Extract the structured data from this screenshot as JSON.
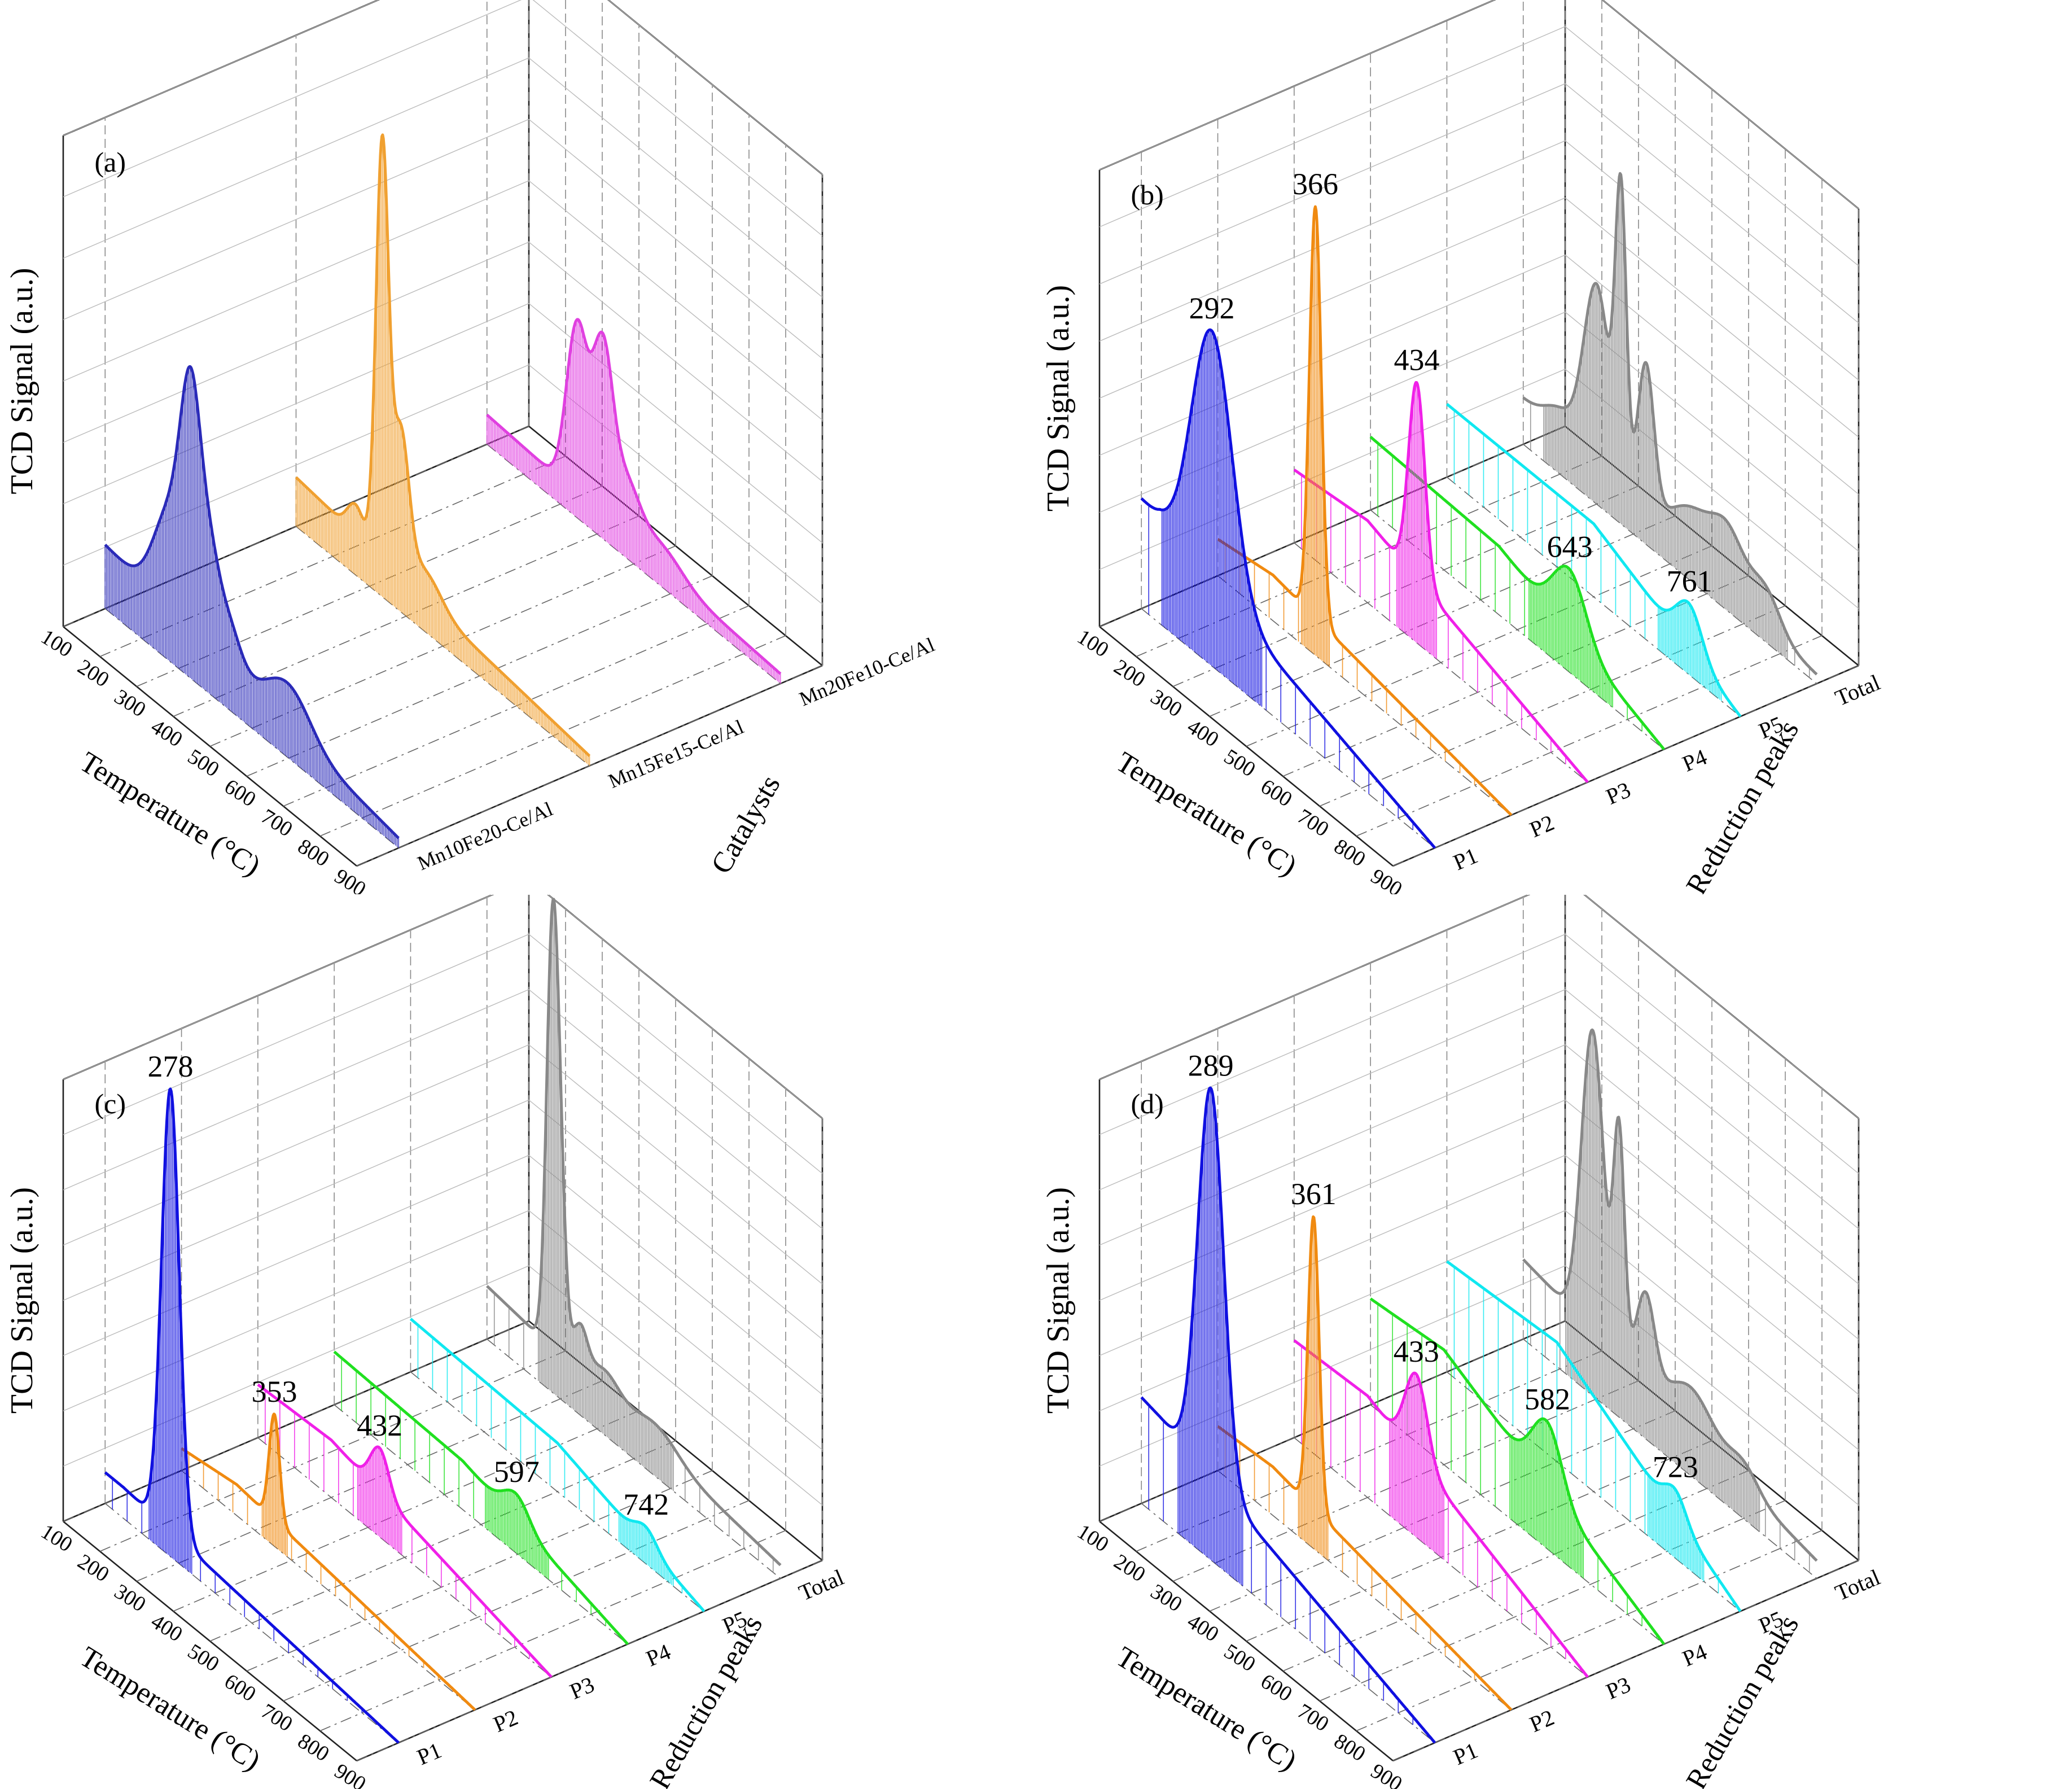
{
  "figure": {
    "panels": [
      {
        "id": "a",
        "label": "(a)",
        "ylabel": "TCD Signal (a.u.)",
        "xlabel": "Temperature (°C)",
        "zlabel": "Catalysts"
      },
      {
        "id": "b",
        "label": "(b)",
        "ylabel": "TCD Signal (a.u.)",
        "xlabel": "Temperature (°C)",
        "zlabel": "Reduction peaks"
      },
      {
        "id": "c",
        "label": "(c)",
        "ylabel": "TCD Signal (a.u.)",
        "xlabel": "Temperature (°C)",
        "zlabel": "Reduction peaks"
      },
      {
        "id": "d",
        "label": "(d)",
        "ylabel": "TCD Signal (a.u.)",
        "xlabel": "Temperature (°C)",
        "zlabel": "Reduction peaks"
      }
    ]
  },
  "colors": {
    "blue": "#1010e0",
    "orange": "#f08a10",
    "magenta": "#f020e8",
    "green": "#20e020",
    "cyan": "#10e8f0",
    "gray": "#888888",
    "navy": "#2a2ab8",
    "amber": "#f0a030",
    "pink": "#e040e0"
  },
  "chart_data": [
    {
      "panel": "a",
      "type": "area",
      "title": "",
      "xlabel": "Temperature (°C)",
      "ylabel": "TCD Signal (a.u.)",
      "zlabel": "Catalysts",
      "x_ticks": [
        100,
        200,
        300,
        400,
        500,
        600,
        700,
        800,
        900
      ],
      "xlim": [
        100,
        900
      ],
      "z_categories": [
        "Mn10Fe20-Ce/Al",
        "Mn15Fe15-Ce/Al",
        "Mn20Fe10-Ce/Al"
      ],
      "grid": true,
      "peak_labels": [],
      "series": [
        {
          "name": "Mn10Fe20-Ce/Al",
          "color": "#2a2ab8",
          "baseline": [
            [
              100,
              0.13
            ],
            [
              900,
              0.02
            ]
          ],
          "peaks": [
            [
              280,
              0.2,
              45
            ],
            [
              335,
              0.42,
              28
            ],
            [
              385,
              0.13,
              25
            ],
            [
              430,
              0.1,
              35
            ],
            [
              600,
              0.09,
              60
            ]
          ]
        },
        {
          "name": "Mn15Fe15-Ce/Al",
          "color": "#f0a030",
          "baseline": [
            [
              100,
              0.1
            ],
            [
              900,
              0.02
            ]
          ],
          "peaks": [
            [
              262,
              0.06,
              22
            ],
            [
              335,
              0.84,
              17
            ],
            [
              385,
              0.28,
              22
            ],
            [
              450,
              0.06,
              45
            ]
          ]
        },
        {
          "name": "Mn20Fe10-Ce/Al",
          "color": "#e040e0",
          "baseline": [
            [
              100,
              0.06
            ],
            [
              900,
              0.02
            ]
          ],
          "peaks": [
            [
              345,
              0.34,
              28
            ],
            [
              415,
              0.34,
              28
            ],
            [
              480,
              0.1,
              35
            ],
            [
              570,
              0.05,
              60
            ]
          ]
        }
      ]
    },
    {
      "panel": "b",
      "type": "area",
      "title": "",
      "xlabel": "Temperature (°C)",
      "ylabel": "TCD Signal (a.u.)",
      "zlabel": "Reduction peaks",
      "x_ticks": [
        100,
        200,
        300,
        400,
        500,
        600,
        700,
        800,
        900
      ],
      "xlim": [
        100,
        900
      ],
      "z_categories": [
        "P1",
        "P2",
        "P3",
        "P4",
        "P5",
        "Total"
      ],
      "grid": true,
      "peak_labels": [
        "292",
        "366",
        "434",
        "643",
        "761"
      ],
      "series": [
        {
          "name": "P1",
          "color": "#1010e0",
          "peak_label": "292",
          "baseline": [
            [
              100,
              0.24
            ],
            [
              150,
              0.23
            ],
            [
              200,
              0.2
            ],
            [
              900,
              0.0
            ]
          ],
          "peaks": [
            [
              292,
              0.56,
              55
            ]
          ]
        },
        {
          "name": "P2",
          "color": "#f08a10",
          "peak_label": "366",
          "baseline": [
            [
              100,
              0.08
            ],
            [
              250,
              0.1
            ],
            [
              900,
              0.0
            ]
          ],
          "peaks": [
            [
              366,
              0.9,
              16
            ]
          ]
        },
        {
          "name": "P3",
          "color": "#f020e8",
          "peak_label": "434",
          "baseline": [
            [
              100,
              0.16
            ],
            [
              300,
              0.18
            ],
            [
              900,
              0.0
            ]
          ],
          "peaks": [
            [
              434,
              0.43,
              22
            ]
          ]
        },
        {
          "name": "P4",
          "color": "#20e020",
          "peak_label": "643",
          "baseline": [
            [
              100,
              0.16
            ],
            [
              450,
              0.15
            ],
            [
              900,
              0.0
            ]
          ],
          "peaks": [
            [
              643,
              0.14,
              45
            ]
          ]
        },
        {
          "name": "P5",
          "color": "#10e8f0",
          "peak_label": "761",
          "baseline": [
            [
              100,
              0.16
            ],
            [
              500,
              0.16
            ],
            [
              900,
              0.0
            ]
          ],
          "peaks": [
            [
              761,
              0.1,
              35
            ]
          ]
        },
        {
          "name": "Total",
          "color": "#888888",
          "baseline": [
            [
              100,
              0.1
            ],
            [
              900,
              0.02
            ]
          ],
          "peaks": [
            [
              200,
              0.05,
              40
            ],
            [
              300,
              0.4,
              35
            ],
            [
              366,
              0.62,
              15
            ],
            [
              434,
              0.32,
              22
            ],
            [
              560,
              0.1,
              60
            ],
            [
              660,
              0.12,
              45
            ],
            [
              760,
              0.08,
              40
            ]
          ]
        }
      ]
    },
    {
      "panel": "c",
      "type": "area",
      "title": "",
      "xlabel": "Temperature (°C)",
      "ylabel": "TCD Signal (a.u.)",
      "zlabel": "Reduction peaks",
      "x_ticks": [
        100,
        200,
        300,
        400,
        500,
        600,
        700,
        800,
        900
      ],
      "xlim": [
        100,
        900
      ],
      "z_categories": [
        "P1",
        "P2",
        "P3",
        "P4",
        "P5",
        "Total"
      ],
      "grid": true,
      "peak_labels": [
        "278",
        "353",
        "432",
        "597",
        "742"
      ],
      "series": [
        {
          "name": "P1",
          "color": "#1010e0",
          "peak_label": "278",
          "baseline": [
            [
              100,
              0.07
            ],
            [
              150,
              0.07
            ],
            [
              900,
              0.0
            ]
          ],
          "peaks": [
            [
              278,
              1.0,
              24
            ]
          ]
        },
        {
          "name": "P2",
          "color": "#f08a10",
          "peak_label": "353",
          "baseline": [
            [
              100,
              0.05
            ],
            [
              250,
              0.07
            ],
            [
              900,
              0.0
            ]
          ],
          "peaks": [
            [
              353,
              0.24,
              14
            ]
          ]
        },
        {
          "name": "P3",
          "color": "#f020e8",
          "peak_label": "432",
          "baseline": [
            [
              100,
              0.12
            ],
            [
              300,
              0.13
            ],
            [
              900,
              0.0
            ]
          ],
          "peaks": [
            [
              432,
              0.1,
              25
            ]
          ]
        },
        {
          "name": "P4",
          "color": "#20e020",
          "peak_label": "597",
          "baseline": [
            [
              100,
              0.12
            ],
            [
              450,
              0.11
            ],
            [
              900,
              0.0
            ]
          ],
          "peaks": [
            [
              597,
              0.06,
              35
            ]
          ]
        },
        {
          "name": "P5",
          "color": "#10e8f0",
          "peak_label": "742",
          "baseline": [
            [
              100,
              0.12
            ],
            [
              500,
              0.11
            ],
            [
              900,
              0.0
            ]
          ],
          "peaks": [
            [
              742,
              0.04,
              30
            ]
          ]
        },
        {
          "name": "Total",
          "color": "#888888",
          "baseline": [
            [
              100,
              0.12
            ],
            [
              900,
              0.03
            ]
          ],
          "peaks": [
            [
              278,
              0.9,
              16
            ],
            [
              300,
              0.3,
              15
            ],
            [
              353,
              0.1,
              20
            ],
            [
              420,
              0.06,
              40
            ],
            [
              560,
              0.05,
              60
            ]
          ]
        }
      ]
    },
    {
      "panel": "d",
      "type": "area",
      "title": "",
      "xlabel": "Temperature (°C)",
      "ylabel": "TCD Signal (a.u.)",
      "zlabel": "Reduction peaks",
      "x_ticks": [
        100,
        200,
        300,
        400,
        500,
        600,
        700,
        800,
        900
      ],
      "xlim": [
        100,
        900
      ],
      "z_categories": [
        "P1",
        "P2",
        "P3",
        "P4",
        "P5",
        "Total"
      ],
      "grid": true,
      "peak_labels": [
        "289",
        "361",
        "433",
        "582",
        "723"
      ],
      "series": [
        {
          "name": "P1",
          "color": "#1010e0",
          "peak_label": "289",
          "baseline": [
            [
              100,
              0.24
            ],
            [
              150,
              0.23
            ],
            [
              900,
              0.0
            ]
          ],
          "peaks": [
            [
              289,
              0.88,
              35
            ]
          ]
        },
        {
          "name": "P2",
          "color": "#f08a10",
          "peak_label": "361",
          "baseline": [
            [
              100,
              0.1
            ],
            [
              250,
              0.11
            ],
            [
              900,
              0.0
            ]
          ],
          "peaks": [
            [
              361,
              0.66,
              15
            ]
          ]
        },
        {
          "name": "P3",
          "color": "#f020e8",
          "peak_label": "433",
          "baseline": [
            [
              100,
              0.22
            ],
            [
              300,
              0.23
            ],
            [
              900,
              0.0
            ]
          ],
          "peaks": [
            [
              433,
              0.19,
              30
            ]
          ]
        },
        {
          "name": "P4",
          "color": "#20e020",
          "peak_label": "582",
          "baseline": [
            [
              100,
              0.24
            ],
            [
              300,
              0.26
            ],
            [
              900,
              0.0
            ]
          ],
          "peaks": [
            [
              582,
              0.15,
              40
            ]
          ]
        },
        {
          "name": "P5",
          "color": "#10e8f0",
          "peak_label": "723",
          "baseline": [
            [
              100,
              0.25
            ],
            [
              400,
              0.27
            ],
            [
              900,
              0.0
            ]
          ],
          "peaks": [
            [
              723,
              0.06,
              30
            ]
          ]
        },
        {
          "name": "Total",
          "color": "#888888",
          "baseline": [
            [
              100,
              0.18
            ],
            [
              900,
              0.04
            ]
          ],
          "peaks": [
            [
              289,
              0.68,
              30
            ],
            [
              361,
              0.5,
              15
            ],
            [
              433,
              0.2,
              25
            ],
            [
              560,
              0.1,
              60
            ],
            [
              700,
              0.05,
              40
            ]
          ]
        }
      ]
    }
  ]
}
